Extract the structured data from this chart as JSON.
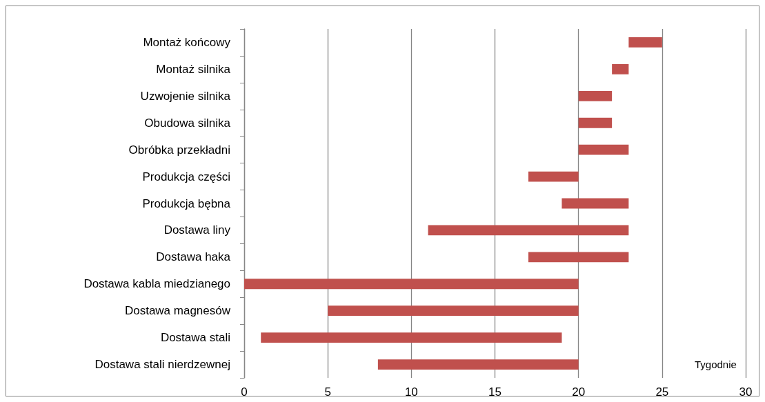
{
  "chart_data": {
    "type": "bar",
    "orientation": "horizontal",
    "xlabel": "Tygodnie",
    "categories": [
      "Montaż końcowy",
      "Montaż silnika",
      "Uzwojenie silnika",
      "Obudowa silnika",
      "Obróbka przekładni",
      "Produkcja części",
      "Produkcja bębna",
      "Dostawa liny",
      "Dostawa haka",
      "Dostawa kabla miedzianego",
      "Dostawa magnesów",
      "Dostawa stali",
      "Dostawa stali nierdzewnej"
    ],
    "base": [
      23,
      22,
      20,
      20,
      20,
      17,
      19,
      11,
      17,
      0,
      5,
      1,
      8
    ],
    "values": [
      2,
      1,
      2,
      2,
      3,
      3,
      4,
      12,
      6,
      20,
      15,
      18,
      12
    ],
    "color": "#c0504d",
    "xlim": [
      0,
      30
    ],
    "xticks": [
      0,
      5,
      10,
      15,
      20,
      25,
      30
    ],
    "grid": "x"
  }
}
